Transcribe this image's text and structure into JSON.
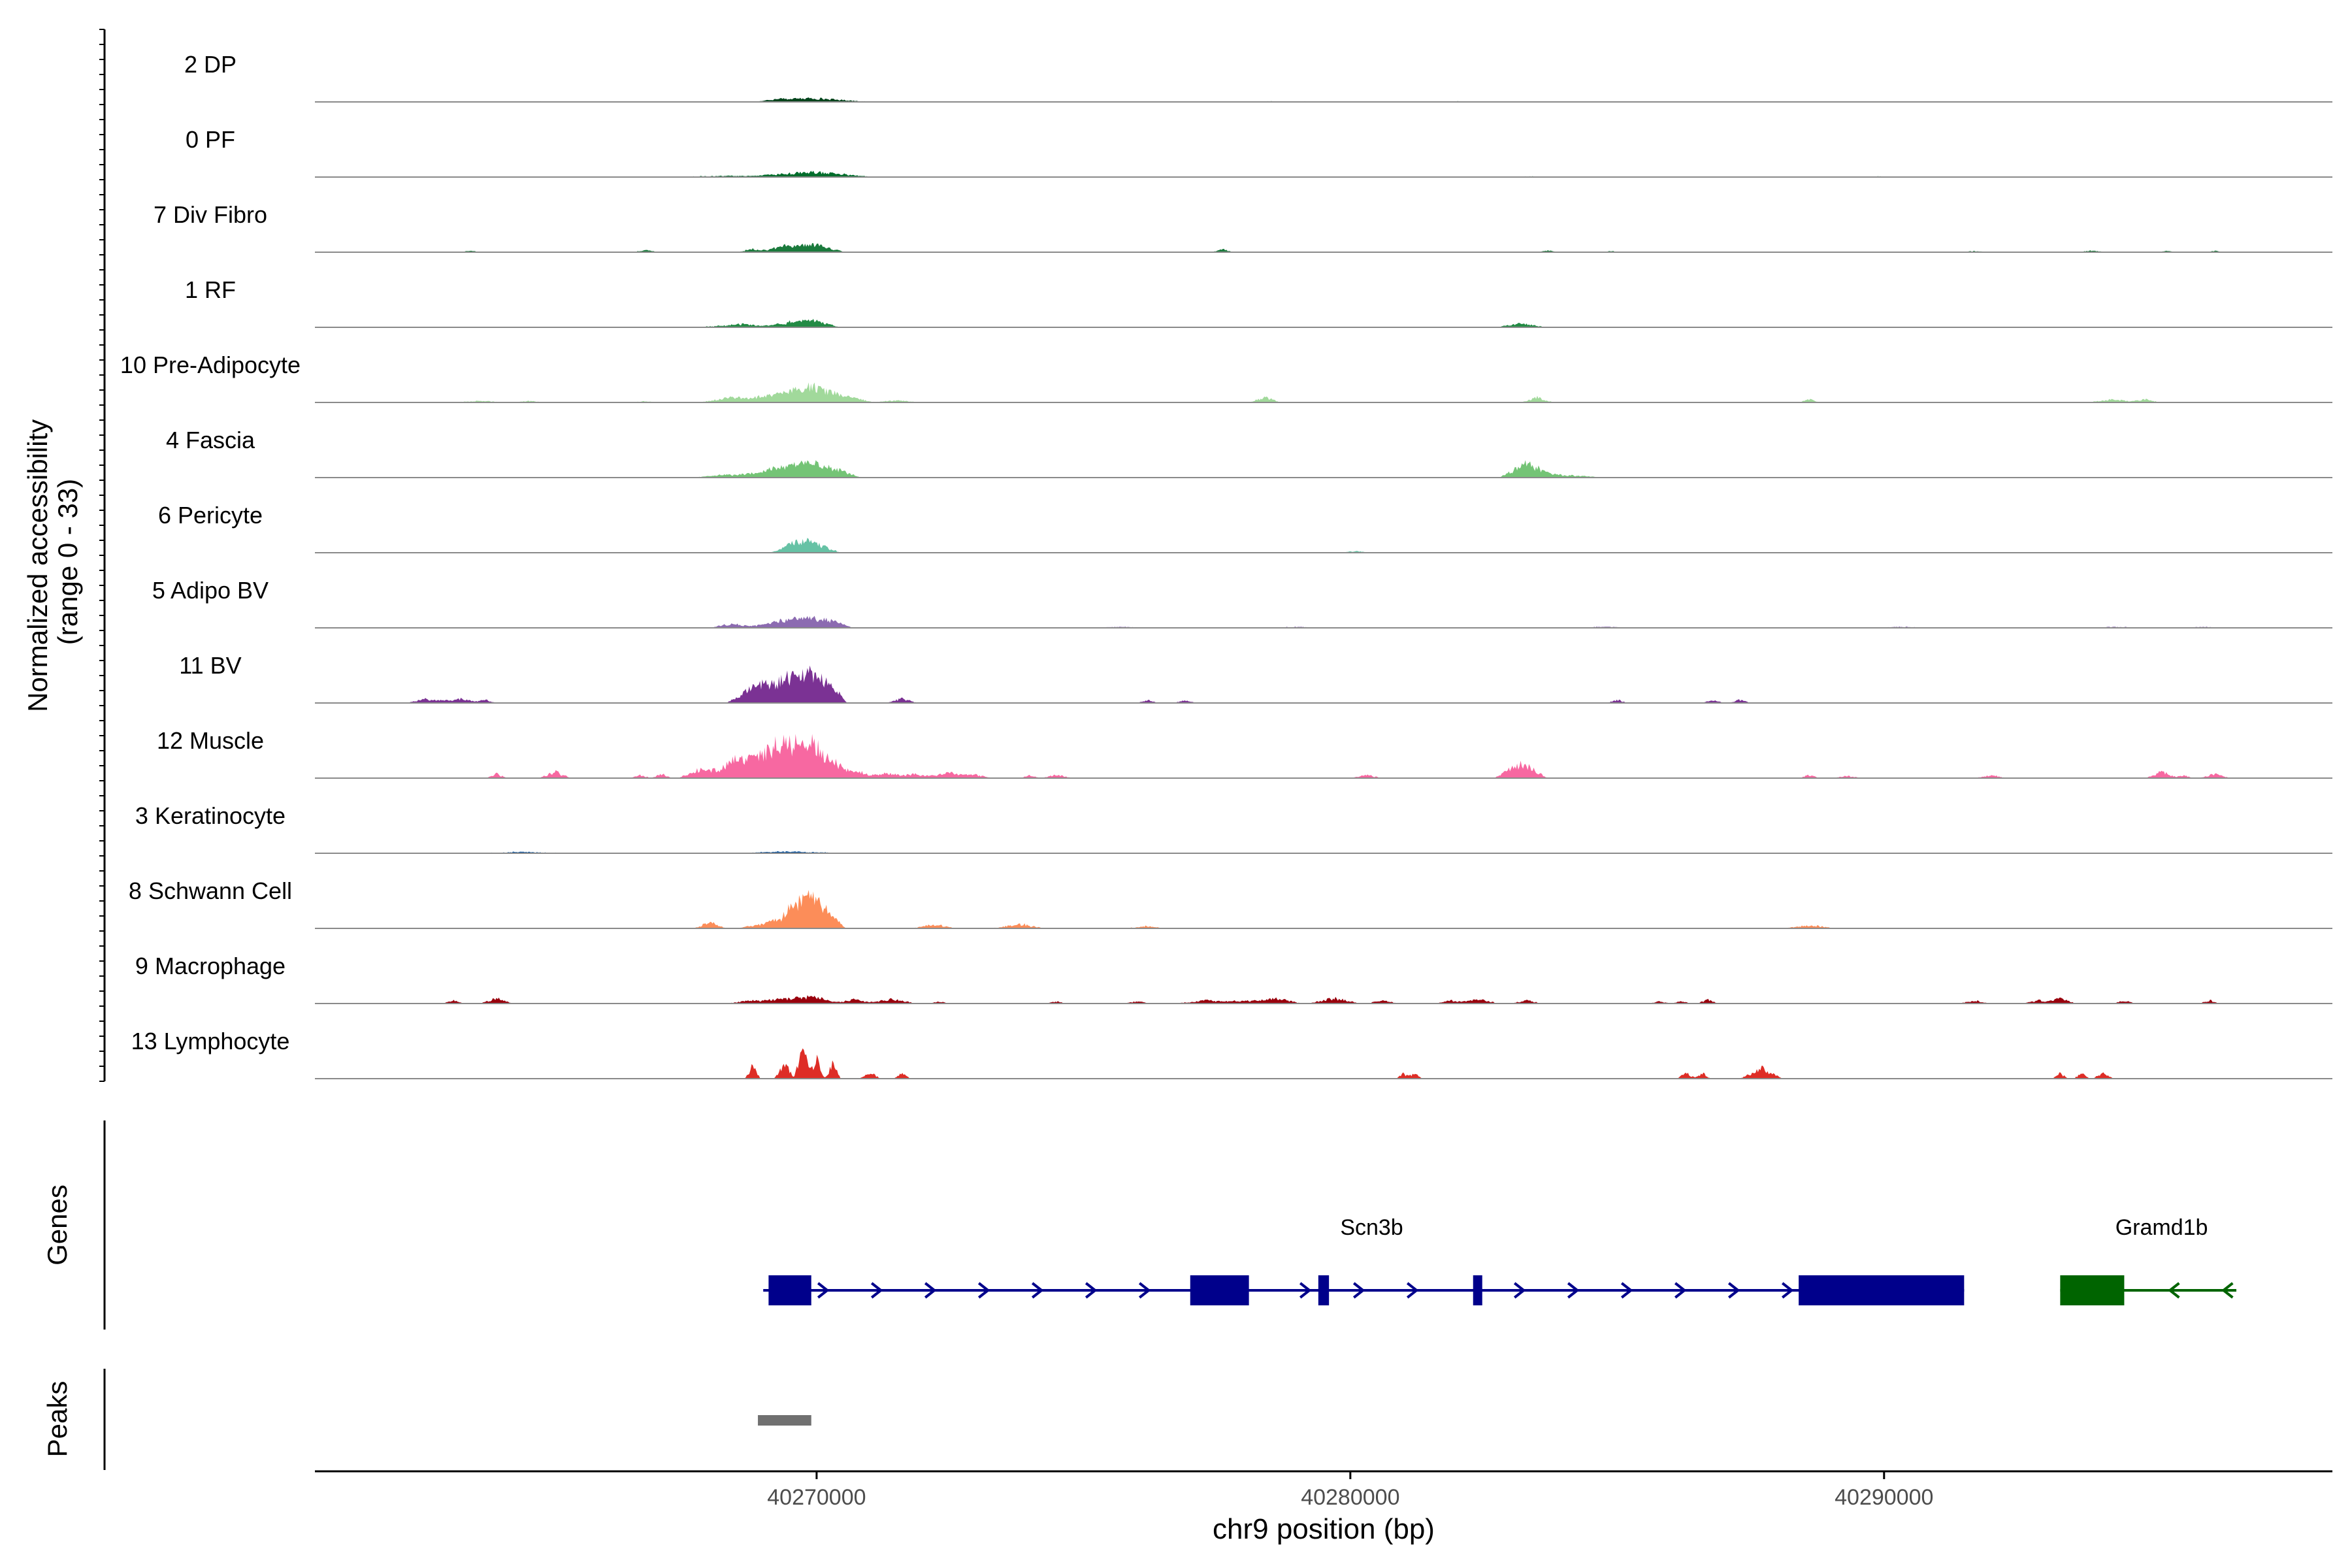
{
  "chart_data": {
    "type": "area",
    "title": "",
    "ylabel_line1": "Normalized accessibility",
    "ylabel_line2": "(range 0 - 33)",
    "xlabel": "chr9 position (bp)",
    "y_range": [
      0,
      33
    ],
    "x_range": [
      40260600,
      40298400
    ],
    "x_ticks": [
      {
        "value": 40270000,
        "label": "40270000"
      },
      {
        "value": 40280000,
        "label": "40280000"
      },
      {
        "value": 40290000,
        "label": "40290000"
      }
    ],
    "genes_label": "Genes",
    "peaks_label": "Peaks",
    "tracks": [
      {
        "name": "2 DP",
        "color": "#00441b",
        "peaks": [
          [
            40269950,
            3.5,
            1100
          ],
          [
            40269300,
            1.5,
            600
          ],
          [
            40264800,
            0.6,
            300
          ],
          [
            40273900,
            0.5,
            250
          ],
          [
            40278500,
            0.6,
            400
          ],
          [
            40279200,
            0.6,
            300
          ],
          [
            40282000,
            0.6,
            300
          ]
        ]
      },
      {
        "name": "0 PF",
        "color": "#006d2c",
        "noise": true,
        "peaks": [
          [
            40269900,
            5,
            1200
          ],
          [
            40268400,
            1.2,
            1000
          ],
          [
            40283400,
            0.6,
            500
          ],
          [
            40290000,
            0.5,
            500
          ]
        ]
      },
      {
        "name": "7 Div Fibro",
        "color": "#1a7a3c",
        "peaks": [
          [
            40269400,
            6,
            500
          ],
          [
            40269950,
            7,
            600
          ],
          [
            40268800,
            3,
            300
          ],
          [
            40263500,
            1.5,
            200
          ],
          [
            40266800,
            2,
            250
          ],
          [
            40277600,
            3,
            200
          ],
          [
            40283700,
            1.5,
            200
          ],
          [
            40284900,
            1.2,
            200
          ],
          [
            40291700,
            1.2,
            250
          ],
          [
            40293900,
            1.5,
            300
          ],
          [
            40295300,
            1.2,
            200
          ],
          [
            40296200,
            1.2,
            200
          ]
        ]
      },
      {
        "name": "1 RF",
        "color": "#238b45",
        "noise": true,
        "peaks": [
          [
            40268600,
            3,
            800
          ],
          [
            40269500,
            4.5,
            500
          ],
          [
            40269950,
            6.5,
            500
          ],
          [
            40283200,
            3.5,
            500
          ]
        ]
      },
      {
        "name": "10 Pre-Adipocyte",
        "color": "#a1d99b",
        "peaks": [
          [
            40269950,
            15,
            900
          ],
          [
            40269100,
            7,
            900
          ],
          [
            40268300,
            4,
            500
          ],
          [
            40270800,
            3,
            300
          ],
          [
            40278400,
            5,
            300
          ],
          [
            40283500,
            5,
            300
          ],
          [
            40288600,
            3,
            200
          ],
          [
            40294300,
            3,
            500
          ],
          [
            40294900,
            3,
            300
          ],
          [
            40263700,
            1.5,
            600
          ],
          [
            40264600,
            1.5,
            300
          ],
          [
            40266800,
            1.2,
            300
          ],
          [
            40271500,
            2,
            500
          ]
        ]
      },
      {
        "name": "4 Fascia",
        "color": "#74c476",
        "noise": true,
        "peaks": [
          [
            40269950,
            14,
            900
          ],
          [
            40269200,
            7,
            800
          ],
          [
            40268300,
            3,
            600
          ],
          [
            40283300,
            12,
            500
          ],
          [
            40283800,
            3,
            1000
          ]
        ]
      },
      {
        "name": "6 Pericyte",
        "color": "#66c2a5",
        "noise": true,
        "peaks": [
          [
            40269850,
            11,
            600
          ],
          [
            40269500,
            4,
            400
          ],
          [
            40280100,
            1.5,
            300
          ]
        ]
      },
      {
        "name": "5 Adipo BV",
        "color": "#8c6bb1",
        "noise": true,
        "peaks": [
          [
            40269950,
            10,
            700
          ],
          [
            40269300,
            6,
            700
          ],
          [
            40268400,
            4,
            400
          ],
          [
            40270400,
            2,
            300
          ],
          [
            40275700,
            1,
            600
          ],
          [
            40279000,
            1,
            400
          ],
          [
            40284800,
            1,
            500
          ],
          [
            40290300,
            1,
            500
          ],
          [
            40294300,
            1,
            500
          ],
          [
            40296000,
            1,
            400
          ]
        ]
      },
      {
        "name": "11 BV",
        "color": "#7b3294",
        "peaks": [
          [
            40269400,
            22,
            800
          ],
          [
            40269950,
            24,
            600
          ],
          [
            40268800,
            12,
            500
          ],
          [
            40270300,
            6,
            300
          ],
          [
            40262700,
            4,
            400
          ],
          [
            40263300,
            4,
            500
          ],
          [
            40263800,
            3,
            200
          ],
          [
            40271600,
            4,
            300
          ],
          [
            40276200,
            3,
            200
          ],
          [
            40276900,
            3,
            200
          ],
          [
            40285000,
            3,
            200
          ],
          [
            40286800,
            3,
            200
          ],
          [
            40287300,
            3,
            200
          ]
        ]
      },
      {
        "name": "12 Muscle",
        "color": "#f768a1",
        "peaks": [
          [
            40269200,
            30,
            900
          ],
          [
            40269950,
            28,
            800
          ],
          [
            40268400,
            14,
            500
          ],
          [
            40267800,
            8,
            400
          ],
          [
            40270800,
            6,
            400
          ],
          [
            40271300,
            5,
            300
          ],
          [
            40271800,
            4,
            500
          ],
          [
            40272500,
            5,
            500
          ],
          [
            40273000,
            3,
            300
          ],
          [
            40274000,
            3,
            200
          ],
          [
            40274500,
            3,
            300
          ],
          [
            40264000,
            4,
            200
          ],
          [
            40265100,
            6,
            300
          ],
          [
            40266700,
            3,
            200
          ],
          [
            40267100,
            4,
            200
          ],
          [
            40283200,
            14,
            500
          ],
          [
            40280300,
            3,
            300
          ],
          [
            40288600,
            3,
            200
          ],
          [
            40289300,
            2,
            300
          ],
          [
            40292000,
            3,
            300
          ],
          [
            40295200,
            6,
            300
          ],
          [
            40295600,
            3,
            200
          ],
          [
            40296200,
            4,
            300
          ]
        ]
      },
      {
        "name": "3 Keratinocyte",
        "color": "#08519c",
        "noise": true,
        "peaks": [
          [
            40269500,
            1.5,
            1200
          ],
          [
            40264500,
            1.2,
            800
          ]
        ]
      },
      {
        "name": "8 Schwann Cell",
        "color": "#fc8d59",
        "noise": true,
        "peaks": [
          [
            40269950,
            28,
            600
          ],
          [
            40269500,
            14,
            600
          ],
          [
            40268000,
            6,
            300
          ],
          [
            40268900,
            3,
            400
          ],
          [
            40272200,
            4,
            400
          ],
          [
            40273800,
            4,
            500
          ],
          [
            40276200,
            2,
            400
          ],
          [
            40288600,
            3,
            500
          ]
        ]
      },
      {
        "name": "9 Macrophage",
        "color": "#99000d",
        "peaks": [
          [
            40263200,
            3,
            200
          ],
          [
            40264000,
            5,
            300
          ],
          [
            40268800,
            3,
            500
          ],
          [
            40269400,
            5,
            500
          ],
          [
            40269950,
            7,
            500
          ],
          [
            40270700,
            4,
            400
          ],
          [
            40271400,
            4,
            500
          ],
          [
            40272300,
            2,
            200
          ],
          [
            40274500,
            2,
            200
          ],
          [
            40276000,
            2,
            300
          ],
          [
            40277300,
            3,
            600
          ],
          [
            40278000,
            3,
            500
          ],
          [
            40278600,
            5,
            500
          ],
          [
            40279700,
            5,
            500
          ],
          [
            40280600,
            3,
            300
          ],
          [
            40281900,
            3,
            300
          ],
          [
            40282400,
            4,
            400
          ],
          [
            40283300,
            3,
            300
          ],
          [
            40285800,
            2,
            200
          ],
          [
            40286200,
            2,
            200
          ],
          [
            40286700,
            4,
            200
          ],
          [
            40291700,
            3,
            300
          ],
          [
            40292900,
            3,
            300
          ],
          [
            40293300,
            5,
            300
          ],
          [
            40294500,
            3,
            200
          ],
          [
            40296100,
            3,
            200
          ]
        ]
      },
      {
        "name": "13 Lymphocyte",
        "color": "#de2d26",
        "peaks": [
          [
            40268800,
            12,
            150
          ],
          [
            40269400,
            14,
            200
          ],
          [
            40269750,
            28,
            180
          ],
          [
            40270000,
            18,
            150
          ],
          [
            40270300,
            14,
            150
          ],
          [
            40271000,
            6,
            200
          ],
          [
            40271600,
            6,
            150
          ],
          [
            40281000,
            5,
            150
          ],
          [
            40281200,
            5,
            150
          ],
          [
            40286300,
            5,
            200
          ],
          [
            40286600,
            5,
            150
          ],
          [
            40287700,
            10,
            400
          ],
          [
            40293300,
            5,
            150
          ],
          [
            40293700,
            5,
            150
          ],
          [
            40294100,
            5,
            200
          ]
        ]
      }
    ],
    "genes": [
      {
        "name": "Scn3b",
        "strand": "+",
        "color": "#00008b",
        "start": 40269000,
        "end": 40291500,
        "label_pos": 40280400,
        "exons": [
          [
            40269100,
            40269900
          ],
          [
            40277000,
            40278100
          ],
          [
            40279400,
            40279600
          ],
          [
            40282300,
            40282450
          ],
          [
            40288400,
            40291500
          ]
        ]
      },
      {
        "name": "Gramd1b",
        "strand": "-",
        "color": "#006400",
        "start": 40293300,
        "end": 40296600,
        "label_pos": 40295200,
        "exons": [
          [
            40293300,
            40294500
          ]
        ]
      }
    ],
    "peak_regions": [
      [
        40268900,
        40269900
      ]
    ]
  }
}
